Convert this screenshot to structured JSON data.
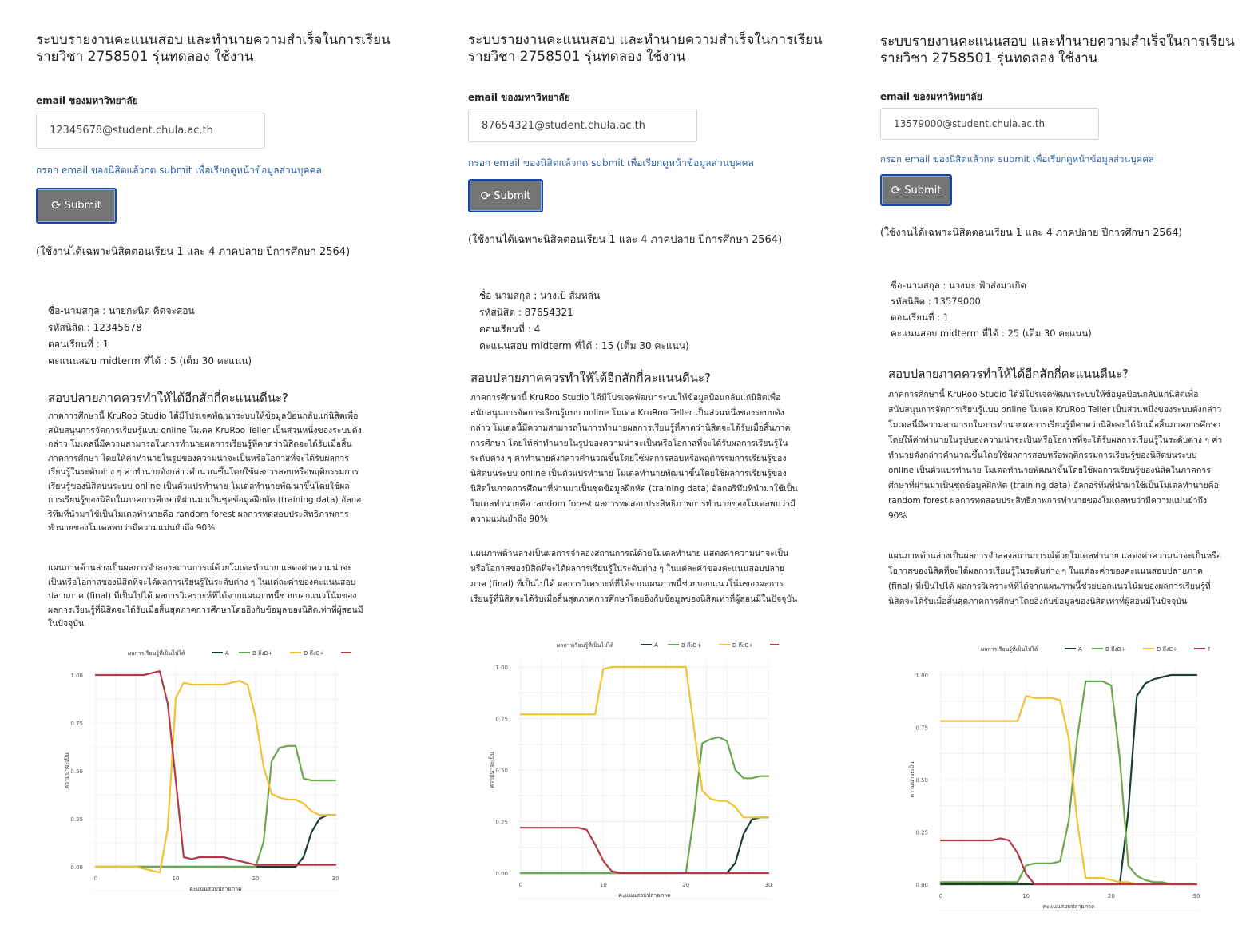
{
  "common": {
    "title_line1": "ระบบรายงานคะแนนสอบ และทำนายความสำเร็จในการเรียน",
    "title_line2": "รายวิชา 2758501 รุ่นทดลอง ใช้งาน",
    "email_label": "email ของมหาวิทยาลัย",
    "hint": "กรอก email ของนิสิตแล้วกด submit เพื่อเรียกดูหน้าข้อมูลส่วนบุคคล",
    "submit_label": "Submit",
    "usage_note": "(ใช้งานได้เฉพาะนิสิตตอนเรียน 1 และ 4 ภาคปลาย ปีการศึกษา 2564)",
    "question": "สอบปลายภาคควรทำให้ได้อีกสักกี่คะแนนดีนะ?",
    "paragraph1": "ภาคการศึกษานี้ KruRoo Studio ได้มีโปรเจคพัฒนาระบบให้ข้อมูลป้อนกลับแก่นิสิตเพื่อสนับสนุนการจัดการเรียนรู้แบบ online โมเดล KruRoo Teller เป็นส่วนหนึ่งของระบบดังกล่าว โมเดลนี้มีความสามารถในการทำนายผลการเรียนรู้ที่คาดว่านิสิตจะได้รับเมื่อสิ้นภาคการศึกษา โดยให้ค่าทำนายในรูปของความน่าจะเป็นหรือโอกาสที่จะได้รับผลการเรียนรู้ในระดับต่าง ๆ ค่าทำนายดังกล่าวคำนวณขึ้นโดยใช้ผลการสอบหรือพฤติกรรมการเรียนรู้ของนิสิตบนระบบ online เป็นตัวแปรทำนาย โมเดลทำนายพัฒนาขึ้นโดยใช้ผลการเรียนรู้ของนิสิตในภาคการศึกษาที่ผ่านมาเป็นชุดข้อมูลฝึกหัด (training data) อัลกอริทึมที่นำมาใช้เป็นโมเดลทำนายคือ random forest ผลการทดสอบประสิทธิภาพการทำนายของโมเดลพบว่ามีความแม่นยำถึง 90%",
    "paragraph2": "แผนภาพด้านล่างเป็นผลการจำลองสถานการณ์ด้วยโมเดลทำนาย แสดงค่าความน่าจะเป็นหรือโอกาสของนิสิตที่จะได้ผลการเรียนรู้ในระดับต่าง ๆ ในแต่ละค่าของคะแนนสอบปลายภาค (final) ที่เป็นไปได้ ผลการวิเคราะห์ที่ได้จากแผนภาพนี้ช่วยบอกแนวโน้มของผลการเรียนรู้ที่นิสิตจะได้รับเมื่อสิ้นสุดภาคการศึกษาโดยอิงกับข้อมูลของนิสิตเท่าที่ผู้สอนมีในปัจจุบัน",
    "name_label": "ชื่อ-นามสกุล :",
    "id_label": "รหัสนิสิต :",
    "section_label": "ตอนเรียนที่ :",
    "midterm_label": "คะแนนสอบ midterm ที่ได้ :",
    "midterm_suffix": "(เต็ม 30 คะแนน)"
  },
  "panels": [
    {
      "email": "12345678@student.chula.ac.th",
      "name_line": "ชื่อ-นามสกุล : นายกะนิต คิดจะสอน",
      "id_line": "รหัสนิสิต : 12345678",
      "section_line": "ตอนเรียนที่ : 1",
      "midterm_line": "คะแนนสอบ midterm ที่ได้ : 5 (เต็ม 30 คะแนน)"
    },
    {
      "email": "87654321@student.chula.ac.th",
      "name_line": "ชื่อ-นามสกุล : นางเป้ ส้มหล่น",
      "id_line": "รหัสนิสิต : 87654321",
      "section_line": "ตอนเรียนที่ : 4",
      "midterm_line": "คะแนนสอบ midterm ที่ได้ : 15 (เต็ม 30 คะแนน)"
    },
    {
      "email": "13579000@student.chula.ac.th",
      "name_line": "ชื่อ-นามสกุล : นางมะ ฟ้าส่งมาเกิด",
      "id_line": "รหัสนิสิต : 13579000",
      "section_line": "ตอนเรียนที่ : 1",
      "midterm_line": "คะแนนสอบ midterm ที่ได้ : 25 (เต็ม 30 คะแนน)"
    }
  ],
  "colors": {
    "A": "#1f3d2b",
    "B": "#6aa84f",
    "C": "#f1c232",
    "F": "#b03a48",
    "button": "#757575"
  },
  "icons": {
    "submit": "refresh-icon"
  },
  "chart_data": [
    {
      "type": "line",
      "legend_title": "ผลการเรียนรู้ที่เป็นไปได้",
      "legend_placement": "top",
      "xlabel": "คะแนนสอบปลายภาค",
      "ylabel": "ความน่าจะเป็น",
      "xlim": [
        0,
        30
      ],
      "ylim": [
        0,
        1
      ],
      "xticks": [
        0,
        10,
        20,
        30
      ],
      "yticks": [
        0.0,
        0.25,
        0.5,
        0.75,
        1.0
      ],
      "x": [
        0,
        1,
        2,
        3,
        4,
        5,
        6,
        7,
        8,
        9,
        10,
        11,
        12,
        13,
        14,
        15,
        16,
        17,
        18,
        19,
        20,
        21,
        22,
        23,
        24,
        25,
        26,
        27,
        28,
        29,
        30
      ],
      "series": [
        {
          "name": "A",
          "color": "#1f3d2b",
          "values": [
            0,
            0,
            0,
            0,
            0,
            0,
            0,
            0,
            0,
            0,
            0,
            0,
            0,
            0,
            0,
            0,
            0,
            0,
            0,
            0,
            0,
            0,
            0,
            0,
            0,
            0,
            0.05,
            0.18,
            0.25,
            0.27,
            0.27
          ]
        },
        {
          "name": "B ถึงB+",
          "color": "#6aa84f",
          "values": [
            0,
            0,
            0,
            0,
            0,
            0,
            0,
            0,
            0,
            0,
            0,
            0,
            0,
            0,
            0,
            0,
            0,
            0,
            0,
            0,
            0,
            0.13,
            0.55,
            0.62,
            0.63,
            0.63,
            0.46,
            0.45,
            0.45,
            0.45,
            0.45
          ]
        },
        {
          "name": "D ถึงC+",
          "color": "#f1c232",
          "values": [
            0,
            0,
            0,
            0,
            0,
            0,
            -0.01,
            -0.02,
            -0.03,
            0.2,
            0.88,
            0.96,
            0.95,
            0.95,
            0.95,
            0.95,
            0.95,
            0.96,
            0.97,
            0.95,
            0.78,
            0.52,
            0.38,
            0.36,
            0.35,
            0.35,
            0.33,
            0.29,
            0.27,
            0.27,
            0.27
          ]
        },
        {
          "name": "F",
          "color": "#b03a48",
          "values": [
            1.0,
            1.0,
            1.0,
            1.0,
            1.0,
            1.0,
            1.0,
            1.01,
            1.02,
            0.85,
            0.45,
            0.05,
            0.04,
            0.05,
            0.05,
            0.05,
            0.05,
            0.04,
            0.03,
            0.02,
            0.01,
            0.01,
            0.01,
            0.01,
            0.01,
            0.01,
            0.01,
            0.01,
            0.01,
            0.01,
            0.01
          ]
        }
      ]
    },
    {
      "type": "line",
      "legend_title": "ผลการเรียนรู้ที่เป็นไปได้",
      "legend_placement": "top",
      "xlabel": "คะแนนสอบปลายภาค",
      "ylabel": "ความน่าจะเป็น",
      "xlim": [
        0,
        30
      ],
      "ylim": [
        0,
        1
      ],
      "xticks": [
        0,
        10,
        20,
        30
      ],
      "yticks": [
        0.0,
        0.25,
        0.5,
        0.75,
        1.0
      ],
      "x": [
        0,
        1,
        2,
        3,
        4,
        5,
        6,
        7,
        8,
        9,
        10,
        11,
        12,
        13,
        14,
        15,
        16,
        17,
        18,
        19,
        20,
        21,
        22,
        23,
        24,
        25,
        26,
        27,
        28,
        29,
        30
      ],
      "series": [
        {
          "name": "A",
          "color": "#1f3d2b",
          "values": [
            0,
            0,
            0,
            0,
            0,
            0,
            0,
            0,
            0,
            0,
            0,
            0,
            0,
            0,
            0,
            0,
            0,
            0,
            0,
            0,
            0,
            0,
            0,
            0,
            0,
            0,
            0.05,
            0.19,
            0.26,
            0.27,
            0.27
          ]
        },
        {
          "name": "B ถึงB+",
          "color": "#6aa84f",
          "values": [
            0,
            0,
            0,
            0,
            0,
            0,
            0,
            0,
            0,
            0,
            0,
            0,
            0,
            0,
            0,
            0,
            0,
            0,
            0,
            0,
            0,
            0.28,
            0.63,
            0.65,
            0.66,
            0.64,
            0.5,
            0.46,
            0.46,
            0.47,
            0.47
          ]
        },
        {
          "name": "D ถึงC+",
          "color": "#f1c232",
          "values": [
            0.77,
            0.77,
            0.77,
            0.77,
            0.77,
            0.77,
            0.77,
            0.77,
            0.77,
            0.77,
            0.99,
            1.0,
            1.0,
            1.0,
            1.0,
            1.0,
            1.0,
            1.0,
            1.0,
            1.0,
            1.0,
            0.7,
            0.4,
            0.36,
            0.35,
            0.35,
            0.32,
            0.27,
            0.27,
            0.27,
            0.27
          ]
        },
        {
          "name": "F",
          "color": "#b03a48",
          "values": [
            0.22,
            0.22,
            0.22,
            0.22,
            0.22,
            0.22,
            0.22,
            0.22,
            0.21,
            0.14,
            0.06,
            0.01,
            0,
            0,
            0,
            0,
            0,
            0,
            0,
            0,
            0,
            0,
            0,
            0,
            0,
            0,
            0,
            0,
            0,
            0,
            0
          ]
        }
      ]
    },
    {
      "type": "line",
      "legend_title": "ผลการเรียนรู้ที่เป็นไปได้",
      "legend_placement": "top",
      "xlabel": "คะแนนสอบปลายภาค",
      "ylabel": "ความน่าจะเป็น",
      "xlim": [
        0,
        30
      ],
      "ylim": [
        0,
        1
      ],
      "xticks": [
        0,
        10,
        20,
        30
      ],
      "yticks": [
        0.0,
        0.25,
        0.5,
        0.75,
        1.0
      ],
      "x": [
        0,
        1,
        2,
        3,
        4,
        5,
        6,
        7,
        8,
        9,
        10,
        11,
        12,
        13,
        14,
        15,
        16,
        17,
        18,
        19,
        20,
        21,
        22,
        23,
        24,
        25,
        26,
        27,
        28,
        29,
        30
      ],
      "series": [
        {
          "name": "A",
          "color": "#1f3d2b",
          "values": [
            0,
            0,
            0,
            0,
            0,
            0,
            0,
            0,
            0,
            0,
            0,
            0,
            0,
            0,
            0,
            0,
            0,
            0,
            0,
            0,
            0,
            0,
            0.35,
            0.9,
            0.96,
            0.98,
            0.99,
            1.0,
            1.0,
            1.0,
            1.0
          ]
        },
        {
          "name": "B ถึงB+",
          "color": "#6aa84f",
          "values": [
            0.01,
            0.01,
            0.01,
            0.01,
            0.01,
            0.01,
            0.01,
            0.01,
            0.01,
            0.01,
            0.09,
            0.1,
            0.1,
            0.1,
            0.11,
            0.3,
            0.7,
            0.97,
            0.97,
            0.97,
            0.95,
            0.6,
            0.09,
            0.04,
            0.02,
            0.01,
            0.01,
            0,
            0,
            0,
            0
          ]
        },
        {
          "name": "D ถึงC+",
          "color": "#f1c232",
          "values": [
            0.78,
            0.78,
            0.78,
            0.78,
            0.78,
            0.78,
            0.78,
            0.78,
            0.78,
            0.78,
            0.9,
            0.89,
            0.89,
            0.89,
            0.88,
            0.7,
            0.3,
            0.03,
            0.03,
            0.03,
            0.02,
            0.01,
            0.01,
            0,
            0,
            0,
            0,
            0,
            0,
            0,
            0
          ]
        },
        {
          "name": "F",
          "color": "#b03a48",
          "values": [
            0.21,
            0.21,
            0.21,
            0.21,
            0.21,
            0.21,
            0.21,
            0.22,
            0.21,
            0.15,
            0.05,
            0,
            0,
            0,
            0,
            0,
            0,
            0,
            0,
            0,
            0,
            0,
            0,
            0,
            0,
            0,
            0,
            0,
            0,
            0,
            0
          ]
        }
      ]
    }
  ]
}
